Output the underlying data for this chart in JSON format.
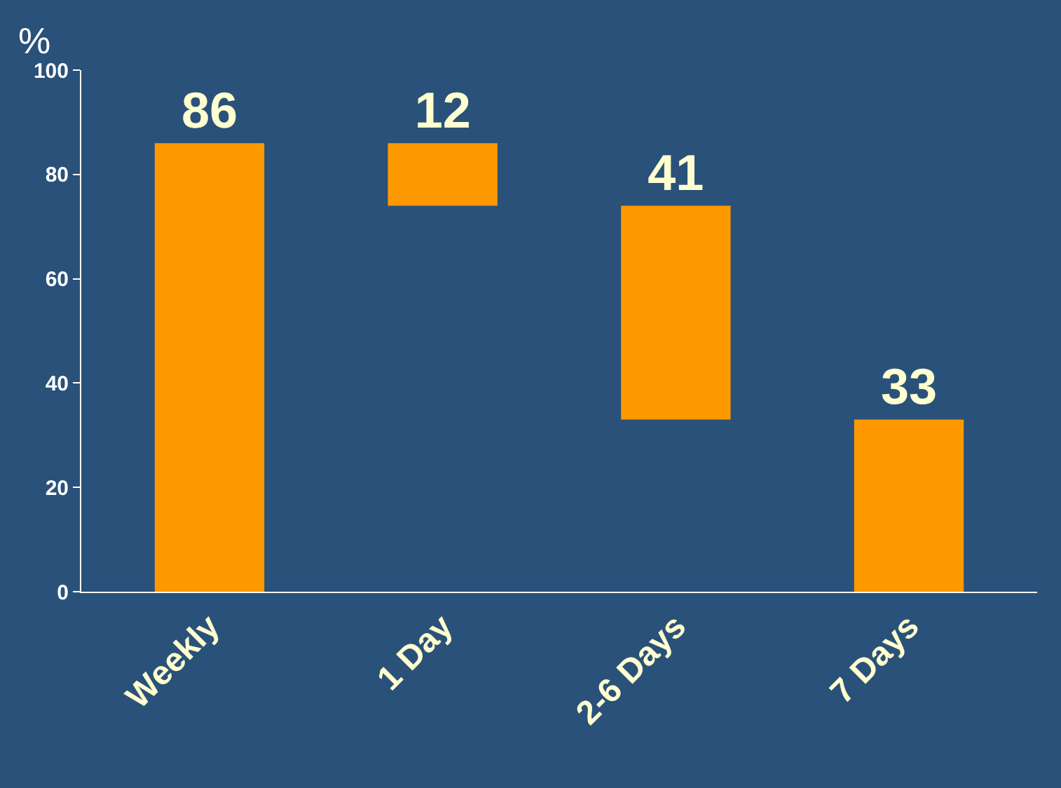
{
  "chart_data": {
    "type": "bar",
    "ylabel": "%",
    "categories": [
      "Weekly",
      "1 Day",
      "2-6 Days",
      "7 Days"
    ],
    "values": [
      86,
      12,
      41,
      33
    ],
    "base": [
      0,
      74,
      33,
      0
    ],
    "color": "#ff9900",
    "ylim": [
      0,
      100
    ],
    "yticks": [
      0,
      20,
      40,
      60,
      80,
      100
    ],
    "data_labels": true
  }
}
